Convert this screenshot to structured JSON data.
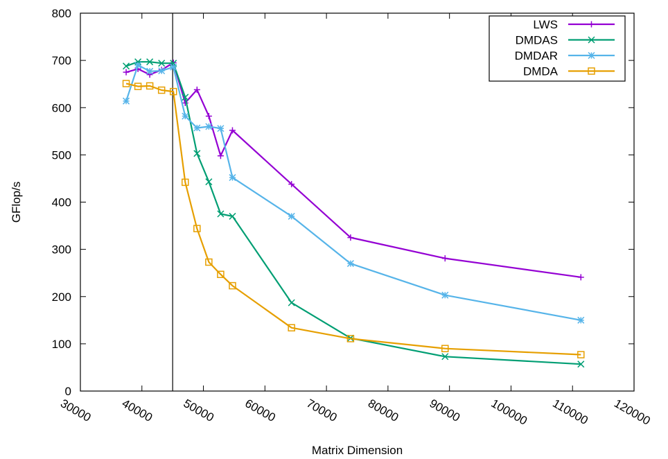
{
  "chart_data": {
    "type": "line",
    "title": "",
    "xlabel": "Matrix Dimension",
    "ylabel": "GFlop/s",
    "xlim": [
      30000,
      120000
    ],
    "ylim": [
      0,
      800
    ],
    "xticks": [
      "30000",
      "40000",
      "50000",
      "60000",
      "70000",
      "80000",
      "90000",
      "100000",
      "110000",
      "120000"
    ],
    "yticks": [
      "0",
      "100",
      "200",
      "300",
      "400",
      "500",
      "600",
      "700",
      "800"
    ],
    "vline_x": 45000,
    "legend_position": "top-right",
    "grid": false,
    "series": [
      {
        "name": "LWS",
        "color": "#9400d3",
        "marker": "plus",
        "points": [
          [
            37440,
            675
          ],
          [
            39360,
            682
          ],
          [
            41280,
            670
          ],
          [
            43200,
            680
          ],
          [
            45120,
            695
          ],
          [
            47040,
            610
          ],
          [
            48960,
            638
          ],
          [
            50880,
            582
          ],
          [
            52800,
            498
          ],
          [
            54720,
            552
          ],
          [
            64320,
            438
          ],
          [
            73920,
            325
          ],
          [
            89280,
            281
          ],
          [
            111360,
            241
          ]
        ]
      },
      {
        "name": "DMDAS",
        "color": "#009e73",
        "marker": "cross",
        "points": [
          [
            37440,
            688
          ],
          [
            39360,
            697
          ],
          [
            41280,
            697
          ],
          [
            43200,
            694
          ],
          [
            45120,
            694
          ],
          [
            47040,
            622
          ],
          [
            48960,
            503
          ],
          [
            50880,
            443
          ],
          [
            52800,
            375
          ],
          [
            54720,
            370
          ],
          [
            64320,
            187
          ],
          [
            73920,
            112
          ],
          [
            89280,
            73
          ],
          [
            111360,
            57
          ]
        ]
      },
      {
        "name": "DMDAR",
        "color": "#56b4e9",
        "marker": "star",
        "points": [
          [
            37440,
            614
          ],
          [
            39360,
            690
          ],
          [
            41280,
            677
          ],
          [
            43200,
            678
          ],
          [
            45120,
            686
          ],
          [
            47040,
            582
          ],
          [
            48960,
            557
          ],
          [
            50880,
            560
          ],
          [
            52800,
            556
          ],
          [
            54720,
            452
          ],
          [
            64320,
            370
          ],
          [
            73920,
            270
          ],
          [
            89280,
            203
          ],
          [
            111360,
            150
          ]
        ]
      },
      {
        "name": "DMDA",
        "color": "#e69f00",
        "marker": "square",
        "points": [
          [
            37440,
            651
          ],
          [
            39360,
            645
          ],
          [
            41280,
            646
          ],
          [
            43200,
            637
          ],
          [
            45120,
            634
          ],
          [
            47040,
            442
          ],
          [
            48960,
            344
          ],
          [
            50880,
            273
          ],
          [
            52800,
            247
          ],
          [
            54720,
            223
          ],
          [
            64320,
            134
          ],
          [
            73920,
            111
          ],
          [
            89280,
            90
          ],
          [
            111360,
            77
          ]
        ]
      }
    ]
  }
}
